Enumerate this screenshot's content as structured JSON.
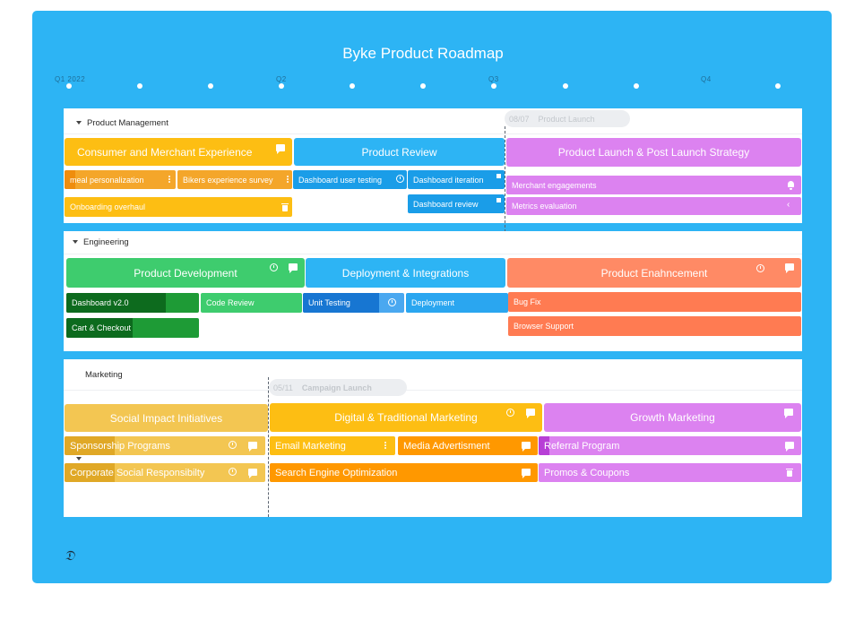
{
  "title": "Byke Product Roadmap",
  "quarters": [
    "Q1 2022",
    "Q2",
    "Q3",
    "Q4"
  ],
  "colors": {
    "background": "#2db4f4",
    "yellow": "#fdbe13",
    "blue": "#2db4f4",
    "purple": "#dc82f0",
    "green": "#3ecc6e",
    "salmon": "#ff8a65",
    "orange": "#ff9800"
  },
  "sections": {
    "product_management": {
      "title": "Product Management",
      "milestone": {
        "date": "08/07",
        "label": "Product Launch"
      },
      "epics": [
        "Consumer and Merchant Experience",
        "Product Review",
        "Product Launch & Post Launch Strategy"
      ],
      "tasks": [
        "meal personalization",
        "Bikers experience survey",
        "Onboarding overhaul",
        "Dashboard user testing",
        "Dashboard iteration",
        "Dashboard review",
        "Merchant engagements",
        "Metrics evaluation"
      ],
      "progress": {
        "meal_personalization": 0.1
      }
    },
    "engineering": {
      "title": "Engineering",
      "epics": [
        "Product Development",
        "Deployment & Integrations",
        "Product Enahncement"
      ],
      "tasks": [
        "Dashboard v2.0",
        "Code Review",
        "Unit Testing",
        "Deployment",
        "Bug Fix",
        "Browser Support",
        "Cart & Checkout"
      ],
      "progress": {
        "dashboard_v2": 0.75,
        "cart_checkout": 0.5,
        "unit_testing": 0.75
      }
    },
    "marketing": {
      "title": "Marketing",
      "milestone": {
        "date": "05/11",
        "label": "Campaign Launch"
      },
      "epics": [
        "Social Impact Initiatives",
        "Digital & Traditional Marketing",
        "Growth Marketing"
      ],
      "tasks": [
        "Sponsorship Programs",
        "Email Marketing",
        "Media Advertisment",
        "Referral Program",
        "Corporate Social Responsibilty",
        "Search Engine Optimization",
        "Promos & Coupons"
      ],
      "progress": {
        "sponsorship": 0.25,
        "corporate_social": 0.25,
        "referral": 0.04
      }
    }
  }
}
